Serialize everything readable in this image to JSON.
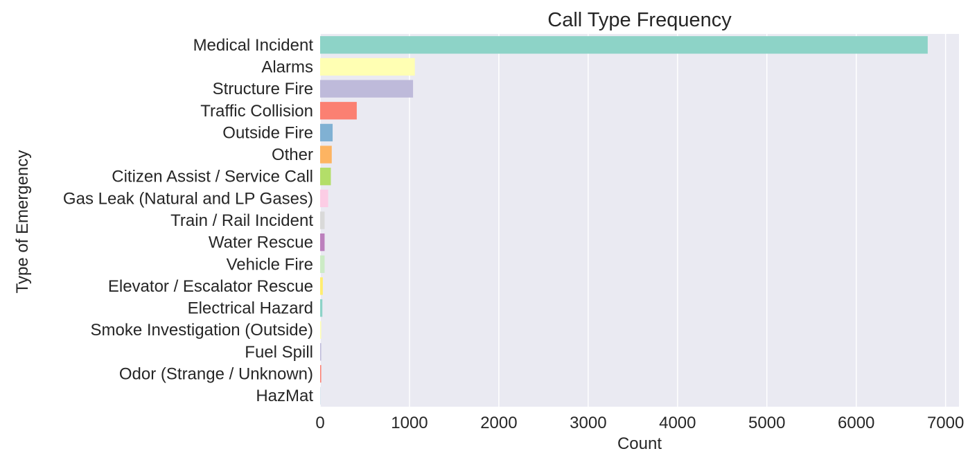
{
  "chart_data": {
    "type": "bar",
    "orientation": "horizontal",
    "title": "Call Type Frequency",
    "xlabel": "Count",
    "ylabel": "Type of Emergency",
    "xlim": [
      0,
      7150
    ],
    "xticks": [
      0,
      1000,
      2000,
      3000,
      4000,
      5000,
      6000,
      7000
    ],
    "grid": true,
    "legend": "none",
    "categories": [
      "Medical Incident",
      "Alarms",
      "Structure Fire",
      "Traffic Collision",
      "Outside Fire",
      "Other",
      "Citizen Assist / Service Call",
      "Gas Leak (Natural and LP Gases)",
      "Train / Rail Incident",
      "Water Rescue",
      "Vehicle Fire",
      "Elevator / Escalator Rescue",
      "Electrical Hazard",
      "Smoke Investigation (Outside)",
      "Fuel Spill",
      "Odor (Strange / Unknown)",
      "HazMat"
    ],
    "values": [
      6800,
      1060,
      1040,
      410,
      140,
      130,
      120,
      90,
      50,
      50,
      50,
      30,
      25,
      12,
      12,
      12,
      2
    ],
    "colors": [
      "#8dd3c7",
      "#ffffb3",
      "#bebada",
      "#fb8072",
      "#80b1d3",
      "#fdb462",
      "#b3de69",
      "#fccde5",
      "#d9d9d9",
      "#bc80bd",
      "#ccebc5",
      "#ffed6f",
      "#8dd3c7",
      "#ffffb3",
      "#bebada",
      "#fb8072",
      "#80b1d3"
    ],
    "background": "#eaeaf2",
    "gridColor": "#ffffff"
  }
}
